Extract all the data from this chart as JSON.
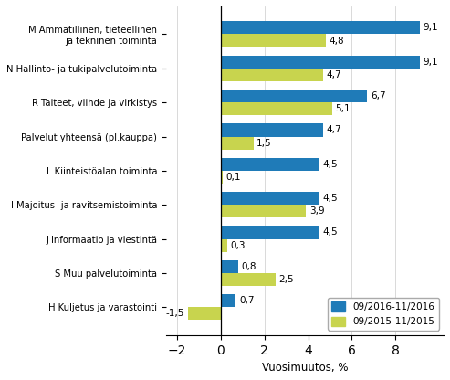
{
  "categories": [
    "M Ammatillinen, tieteellinen\nja tekninen toiminta",
    "N Hallinto- ja tukipalvelutoiminta",
    "R Taiteet, viihde ja virkistys",
    "Palvelut yhteensä (pl.kauppa)",
    "L Kiinteistöalan toiminta",
    "I Majoitus- ja ravitsemistoiminta",
    "J Informaatio ja viestintä",
    "S Muu palvelutoiminta",
    "H Kuljetus ja varastointi"
  ],
  "values_2016": [
    9.1,
    9.1,
    6.7,
    4.7,
    4.5,
    4.5,
    4.5,
    0.8,
    0.7
  ],
  "values_2015": [
    4.8,
    4.7,
    5.1,
    1.5,
    0.1,
    3.9,
    0.3,
    2.5,
    -1.5
  ],
  "color_2016": "#1f7bb8",
  "color_2015": "#c8d44e",
  "xlabel": "Vuosimuutos, %",
  "legend_2016": "09/2016-11/2016",
  "legend_2015": "09/2015-11/2015",
  "xlim": [
    -2.5,
    10.2
  ],
  "xticks": [
    -2,
    0,
    2,
    4,
    6,
    8
  ],
  "bar_height": 0.38
}
